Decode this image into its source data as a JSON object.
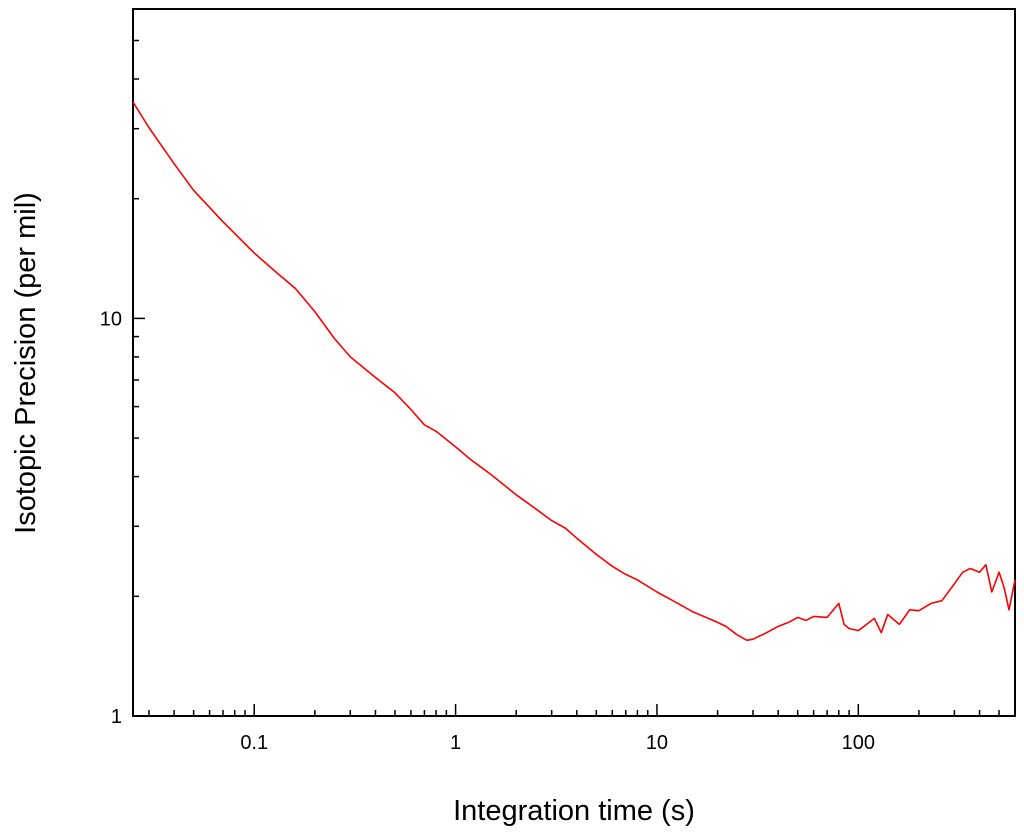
{
  "chart_data": {
    "type": "line",
    "xlabel": "Integration time (s)",
    "ylabel": "Isotopic Precision (per mil)",
    "x_scale": "log",
    "y_scale": "log",
    "xlim": [
      0.025,
      600
    ],
    "ylim": [
      1,
      60
    ],
    "x_ticks": [
      {
        "value": 0.1,
        "label": "0.1"
      },
      {
        "value": 1,
        "label": "1"
      },
      {
        "value": 10,
        "label": "10"
      },
      {
        "value": 100,
        "label": "100"
      }
    ],
    "y_ticks": [
      {
        "value": 1,
        "label": "1"
      },
      {
        "value": 10,
        "label": "10"
      }
    ],
    "grid": false,
    "legend": "none",
    "series": [
      {
        "color": "#ff0000",
        "x": [
          0.025,
          0.03,
          0.04,
          0.05,
          0.07,
          0.1,
          0.13,
          0.16,
          0.2,
          0.25,
          0.3,
          0.4,
          0.5,
          0.6,
          0.7,
          0.8,
          1.0,
          1.2,
          1.5,
          2.0,
          2.5,
          3.0,
          3.5,
          4.0,
          5.0,
          6.0,
          7.0,
          8.0,
          10,
          12,
          15,
          18,
          20,
          22,
          25,
          28,
          30,
          35,
          40,
          45,
          50,
          55,
          60,
          70,
          80,
          85,
          90,
          100,
          110,
          120,
          130,
          140,
          160,
          180,
          200,
          230,
          260,
          300,
          330,
          360,
          400,
          430,
          460,
          500,
          530,
          560,
          600
        ],
        "y": [
          35.0,
          30.2,
          24.5,
          21.0,
          17.5,
          14.6,
          13.0,
          11.9,
          10.4,
          8.9,
          8.0,
          7.1,
          6.5,
          5.9,
          5.4,
          5.2,
          4.75,
          4.4,
          4.05,
          3.6,
          3.32,
          3.1,
          2.97,
          2.8,
          2.55,
          2.38,
          2.27,
          2.2,
          2.05,
          1.95,
          1.83,
          1.76,
          1.72,
          1.68,
          1.6,
          1.55,
          1.56,
          1.62,
          1.68,
          1.72,
          1.77,
          1.74,
          1.78,
          1.77,
          1.92,
          1.7,
          1.66,
          1.64,
          1.7,
          1.76,
          1.62,
          1.8,
          1.7,
          1.85,
          1.84,
          1.92,
          1.95,
          2.15,
          2.3,
          2.35,
          2.3,
          2.4,
          2.05,
          2.3,
          2.1,
          1.85,
          2.2
        ]
      }
    ]
  }
}
